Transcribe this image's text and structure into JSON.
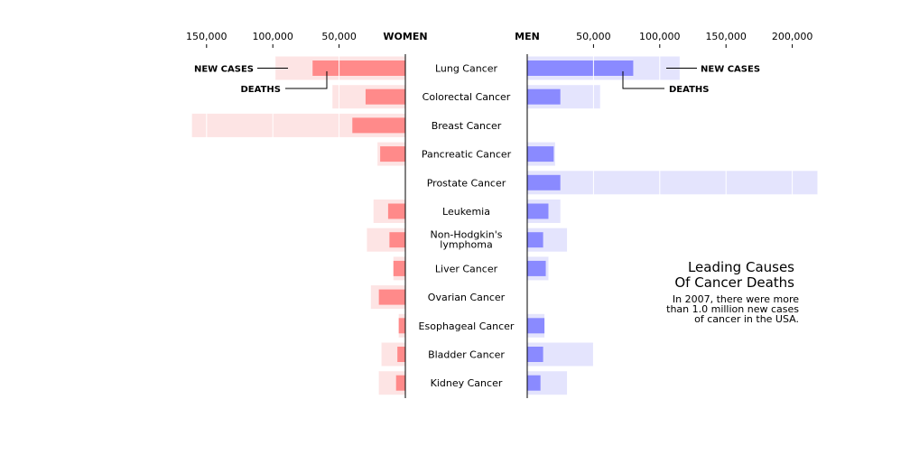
{
  "chart_data": {
    "type": "bar",
    "title_lines": [
      "Leading Causes",
      "Of Cancer Deaths"
    ],
    "subtitle_lines": [
      "In 2007, there were more",
      "than 1.0 million new cases",
      "of cancer in the USA."
    ],
    "women_label": "WOMEN",
    "men_label": "MEN",
    "women_ticks": [
      "150,000",
      "100,000",
      "50,000"
    ],
    "men_ticks": [
      "50,000",
      "100,000",
      "150,000",
      "200,000"
    ],
    "women_tick_values": [
      150000,
      100000,
      50000
    ],
    "men_tick_values": [
      50000,
      100000,
      150000,
      200000
    ],
    "women_xlim": [
      0,
      160000
    ],
    "men_xlim": [
      0,
      220000
    ],
    "categories": [
      [
        "Lung Cancer"
      ],
      [
        "Colorectal Cancer"
      ],
      [
        "Breast Cancer"
      ],
      [
        "Pancreatic Cancer"
      ],
      [
        "Prostate Cancer"
      ],
      [
        "Leukemia"
      ],
      [
        "Non-Hodgkin's",
        "lymphoma"
      ],
      [
        "Liver Cancer"
      ],
      [
        "Ovarian Cancer"
      ],
      [
        "Esophageal Cancer"
      ],
      [
        "Bladder Cancer"
      ],
      [
        "Kidney Cancer"
      ]
    ],
    "series": [
      {
        "name": "Women new cases",
        "values": [
          98000,
          55000,
          161000,
          21000,
          0,
          24000,
          29000,
          9000,
          26000,
          5000,
          18000,
          20000
        ]
      },
      {
        "name": "Women deaths",
        "values": [
          70000,
          30000,
          40000,
          19000,
          0,
          13000,
          12000,
          9000,
          20000,
          5000,
          6000,
          7000
        ]
      },
      {
        "name": "Men new cases",
        "values": [
          115000,
          55000,
          0,
          21000,
          219000,
          25000,
          30000,
          16000,
          0,
          13000,
          50000,
          30000
        ]
      },
      {
        "name": "Men deaths",
        "values": [
          80000,
          25000,
          0,
          20000,
          25000,
          16000,
          12000,
          14000,
          0,
          13000,
          12000,
          10000
        ]
      }
    ],
    "annotations": {
      "new_cases": "NEW CASES",
      "deaths": "DEATHS"
    },
    "colors": {
      "women_new_cases": "#fde4e4",
      "women_deaths": "#ff8a8a",
      "men_new_cases": "#e4e4fd",
      "men_deaths": "#8a8aff"
    },
    "legend": "none"
  }
}
